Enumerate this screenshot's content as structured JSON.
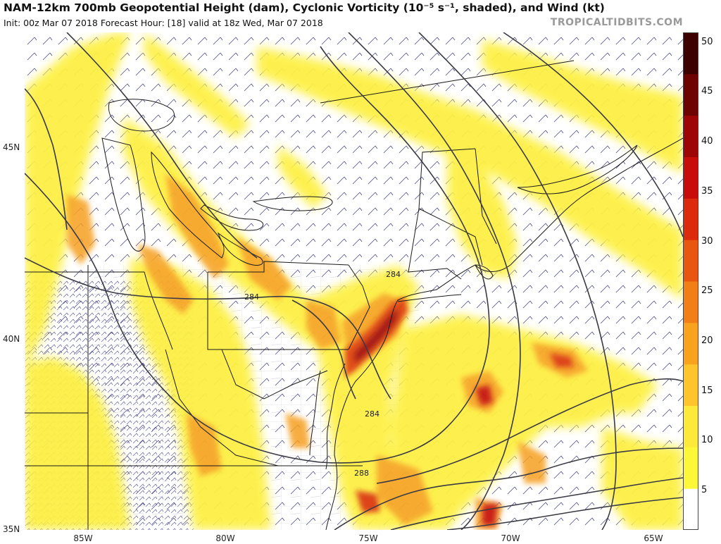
{
  "header": {
    "title": "NAM-12km 700mb Geopotential Height (dam), Cyclonic Vorticity (10⁻⁵ s⁻¹, shaded), and Wind (kt)",
    "subtitle": "Init: 00z Mar 07 2018   Forecast Hour: [18]   valid at 18z Wed, Mar 07 2018",
    "brand": "TROPICALTIDBITS.COM"
  },
  "axes": {
    "lat_labels": [
      "45N",
      "40N",
      "35N"
    ],
    "lon_labels": [
      "85W",
      "80W",
      "75W",
      "70W",
      "65W"
    ]
  },
  "contour_labels": [
    "284",
    "284",
    "284",
    "288"
  ],
  "colorbar": {
    "ticks": [
      "50",
      "45",
      "40",
      "35",
      "30",
      "25",
      "20",
      "15",
      "10",
      "5"
    ],
    "colors": [
      "#ffffff",
      "#fdf73a",
      "#fde93a",
      "#fdc52b",
      "#f9a21d",
      "#f27e16",
      "#e95610",
      "#dc2a0c",
      "#c70c0a",
      "#9e0507",
      "#6e0303",
      "#3d0101"
    ]
  },
  "colors": {
    "height_contour": "#3a3a44",
    "state_borders": "#1a1a1a",
    "county_borders": "#9a9aa4",
    "wind_barbs": "#3b3b7a"
  }
}
